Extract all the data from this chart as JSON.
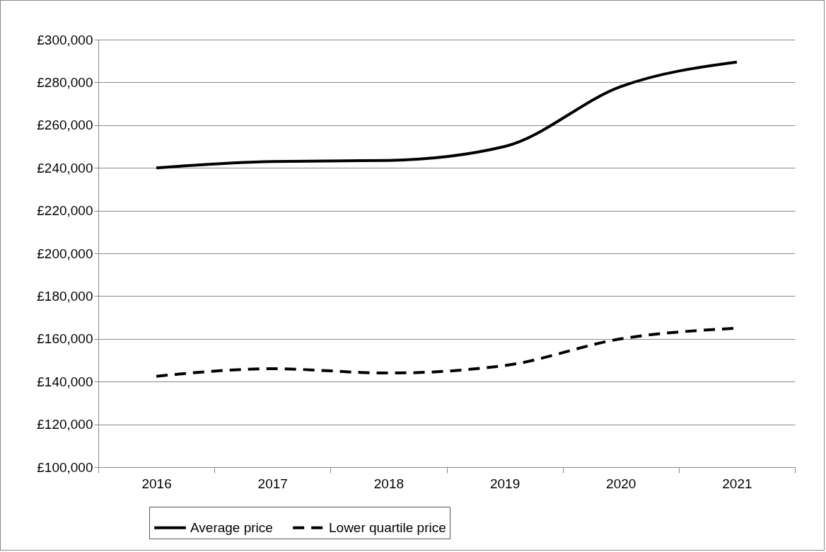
{
  "chart_data": {
    "type": "line",
    "categories": [
      "2016",
      "2017",
      "2018",
      "2019",
      "2020",
      "2021"
    ],
    "series": [
      {
        "name": "Average price",
        "color": "#000000",
        "line_style": "solid",
        "values": [
          240000,
          243000,
          243500,
          250000,
          278000,
          289500
        ]
      },
      {
        "name": "Lower quartile price",
        "color": "#000000",
        "line_style": "dashed",
        "values": [
          142500,
          146000,
          144000,
          147500,
          160000,
          165000
        ]
      }
    ],
    "ylim": [
      100000,
      300000
    ],
    "yticks": [
      {
        "value": 100000,
        "label": "£100,000"
      },
      {
        "value": 120000,
        "label": "£120,000"
      },
      {
        "value": 140000,
        "label": "£140,000"
      },
      {
        "value": 160000,
        "label": "£160,000"
      },
      {
        "value": 180000,
        "label": "£180,000"
      },
      {
        "value": 200000,
        "label": "£200,000"
      },
      {
        "value": 220000,
        "label": "£220,000"
      },
      {
        "value": 240000,
        "label": "£240,000"
      },
      {
        "value": 260000,
        "label": "£260,000"
      },
      {
        "value": 280000,
        "label": "£280,000"
      },
      {
        "value": 300000,
        "label": "£300,000"
      }
    ],
    "grid": "y",
    "legend": "bottom",
    "marker": "none"
  }
}
